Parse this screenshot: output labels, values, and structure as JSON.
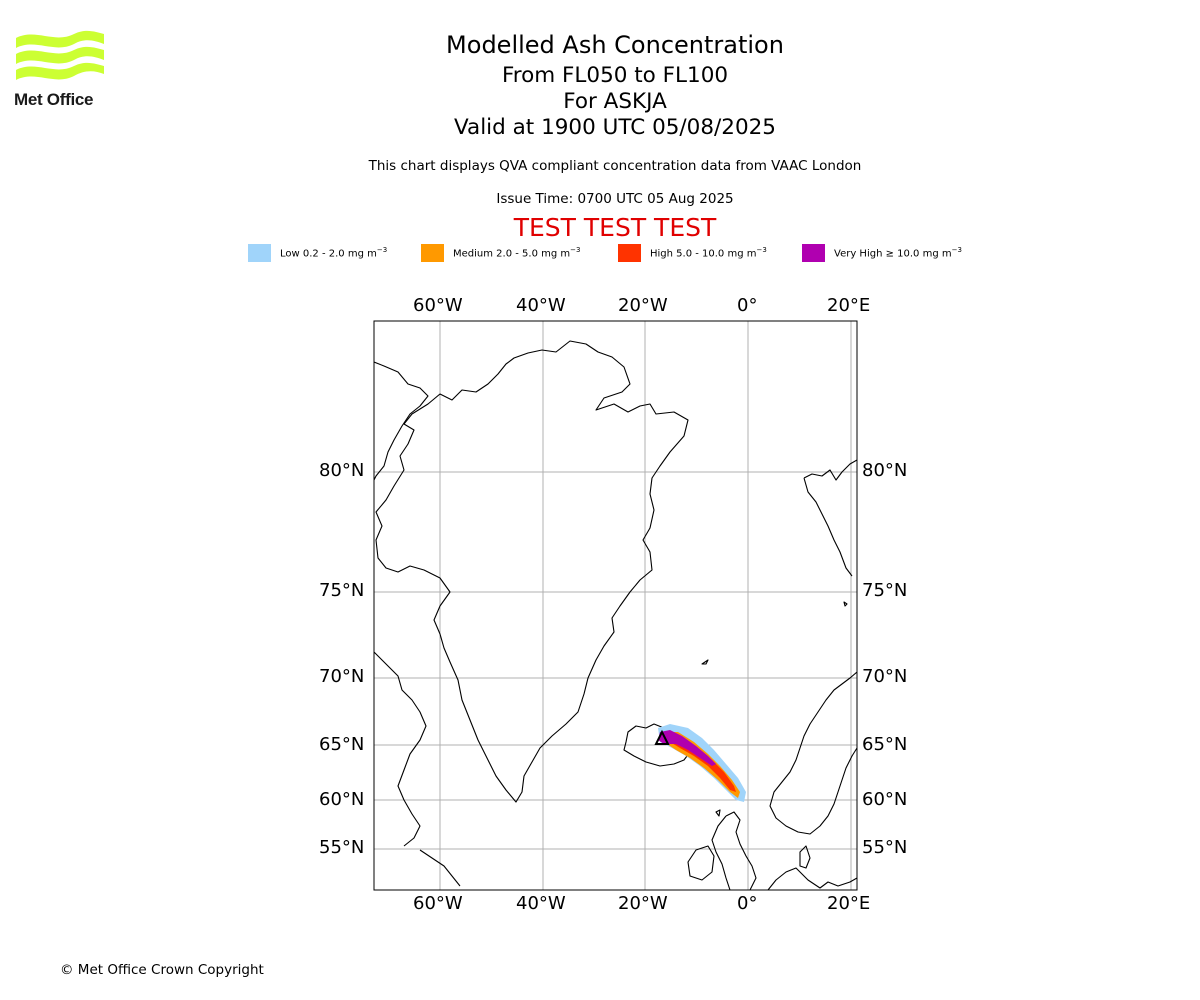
{
  "header": {
    "title": "Modelled Ash Concentration",
    "levels": "From FL050 to FL100",
    "volcano": "For ASKJA",
    "valid": "Valid at 1900 UTC 05/08/2025",
    "note": "This chart displays QVA compliant concentration data from VAAC London",
    "issue": "Issue Time: 0700 UTC 05 Aug 2025",
    "test_banner": "TEST TEST TEST"
  },
  "logo": {
    "text": "Met Office",
    "color": "#ccff33"
  },
  "legend": [
    {
      "label": "Low 0.2 - 2.0 mg m",
      "unit_exp": "−3",
      "color": "#a0d4fa"
    },
    {
      "label": "Medium 2.0 - 5.0 mg m",
      "unit_exp": "−3",
      "color": "#ff9900"
    },
    {
      "label": "High 5.0 - 10.0 mg m",
      "unit_exp": "−3",
      "color": "#ff3300"
    },
    {
      "label": "Very High  ≥  10.0 mg m",
      "unit_exp": "−3",
      "color": "#b000b0"
    }
  ],
  "map": {
    "lon_ticks": [
      "60°W",
      "40°W",
      "20°W",
      "0°",
      "20°E"
    ],
    "lat_ticks": [
      "80°N",
      "75°N",
      "70°N",
      "65°N",
      "60°N",
      "55°N"
    ],
    "volcano_marker": "triangle"
  },
  "footer": {
    "copyright": "© Met Office Crown Copyright"
  }
}
